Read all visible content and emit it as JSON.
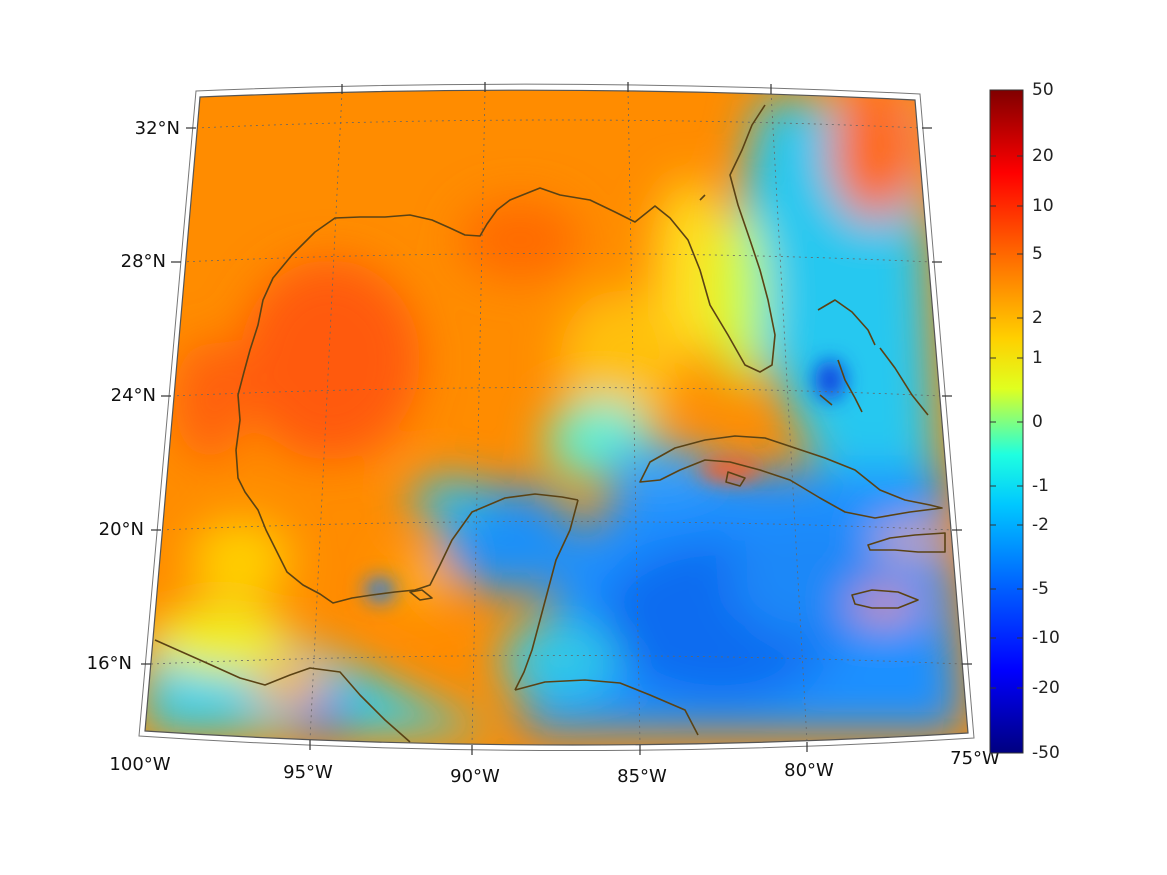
{
  "map": {
    "projection": "conic",
    "lon_range": [
      -100,
      -75
    ],
    "lat_range": [
      14,
      33
    ],
    "land_color": "#5a4214",
    "grid": "dotted"
  },
  "axes": {
    "lat_labels": [
      {
        "lat": 32,
        "text": "32°N"
      },
      {
        "lat": 28,
        "text": "28°N"
      },
      {
        "lat": 24,
        "text": "24°N"
      },
      {
        "lat": 20,
        "text": "20°N"
      },
      {
        "lat": 16,
        "text": "16°N"
      }
    ],
    "lon_labels": [
      {
        "lon": -100,
        "text": "100°W"
      },
      {
        "lon": -95,
        "text": "95°W"
      },
      {
        "lon": -90,
        "text": "90°W"
      },
      {
        "lon": -85,
        "text": "85°W"
      },
      {
        "lon": -80,
        "text": "80°W"
      },
      {
        "lon": -75,
        "text": "75°W"
      }
    ]
  },
  "colorbar": {
    "colormap": "jet",
    "scale": "symmetric-log",
    "ticks": [
      "50",
      "20",
      "10",
      "5",
      "2",
      "1",
      "0",
      "-1",
      "-2",
      "-5",
      "-10",
      "-20",
      "-50"
    ]
  }
}
